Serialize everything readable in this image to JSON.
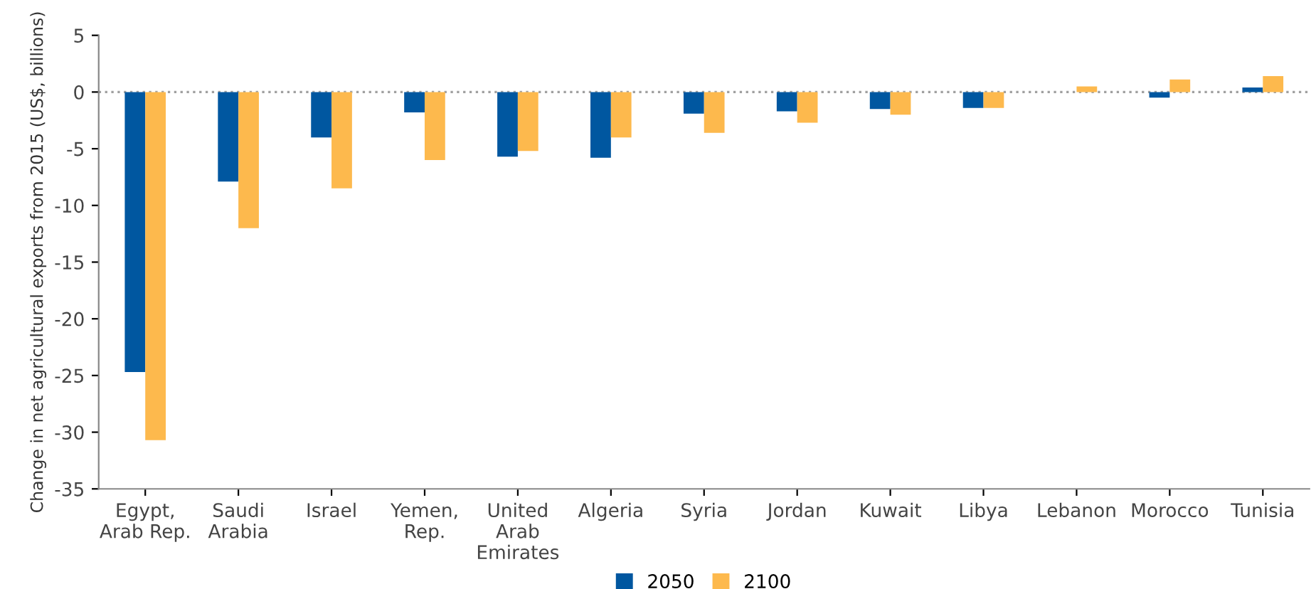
{
  "chart_data": {
    "type": "bar",
    "ylabel": "Change in net agricultural exports from 2015 (US$, billions)",
    "categories": [
      "Egypt,\nArab Rep.",
      "Saudi\nArabia",
      "Israel",
      "Yemen,\nRep.",
      "United\nArab\nEmirates",
      "Algeria",
      "Syria",
      "Jordan",
      "Kuwait",
      "Libya",
      "Lebanon",
      "Morocco",
      "Tunisia"
    ],
    "series": [
      {
        "name": "2050",
        "color": "#0057a0",
        "values": [
          -24.7,
          -7.9,
          -4.0,
          -1.8,
          -5.7,
          -5.8,
          -1.9,
          -1.7,
          -1.5,
          -1.4,
          0,
          -0.5,
          0.4
        ]
      },
      {
        "name": "2100",
        "color": "#fdb94d",
        "values": [
          -30.7,
          -12.0,
          -8.5,
          -6.0,
          -5.2,
          -4.0,
          -3.6,
          -2.7,
          -2.0,
          -1.4,
          0.5,
          1.1,
          1.4
        ]
      }
    ],
    "ylim": [
      -35,
      5
    ],
    "yticks": [
      -35,
      -30,
      -25,
      -20,
      -15,
      -10,
      -5,
      0,
      5
    ],
    "ref_lines": [
      {
        "axis": "y",
        "value": 0,
        "color": "#a0a0a0",
        "line_style": "dotted"
      }
    ],
    "grid": false,
    "legend": "bottom"
  }
}
